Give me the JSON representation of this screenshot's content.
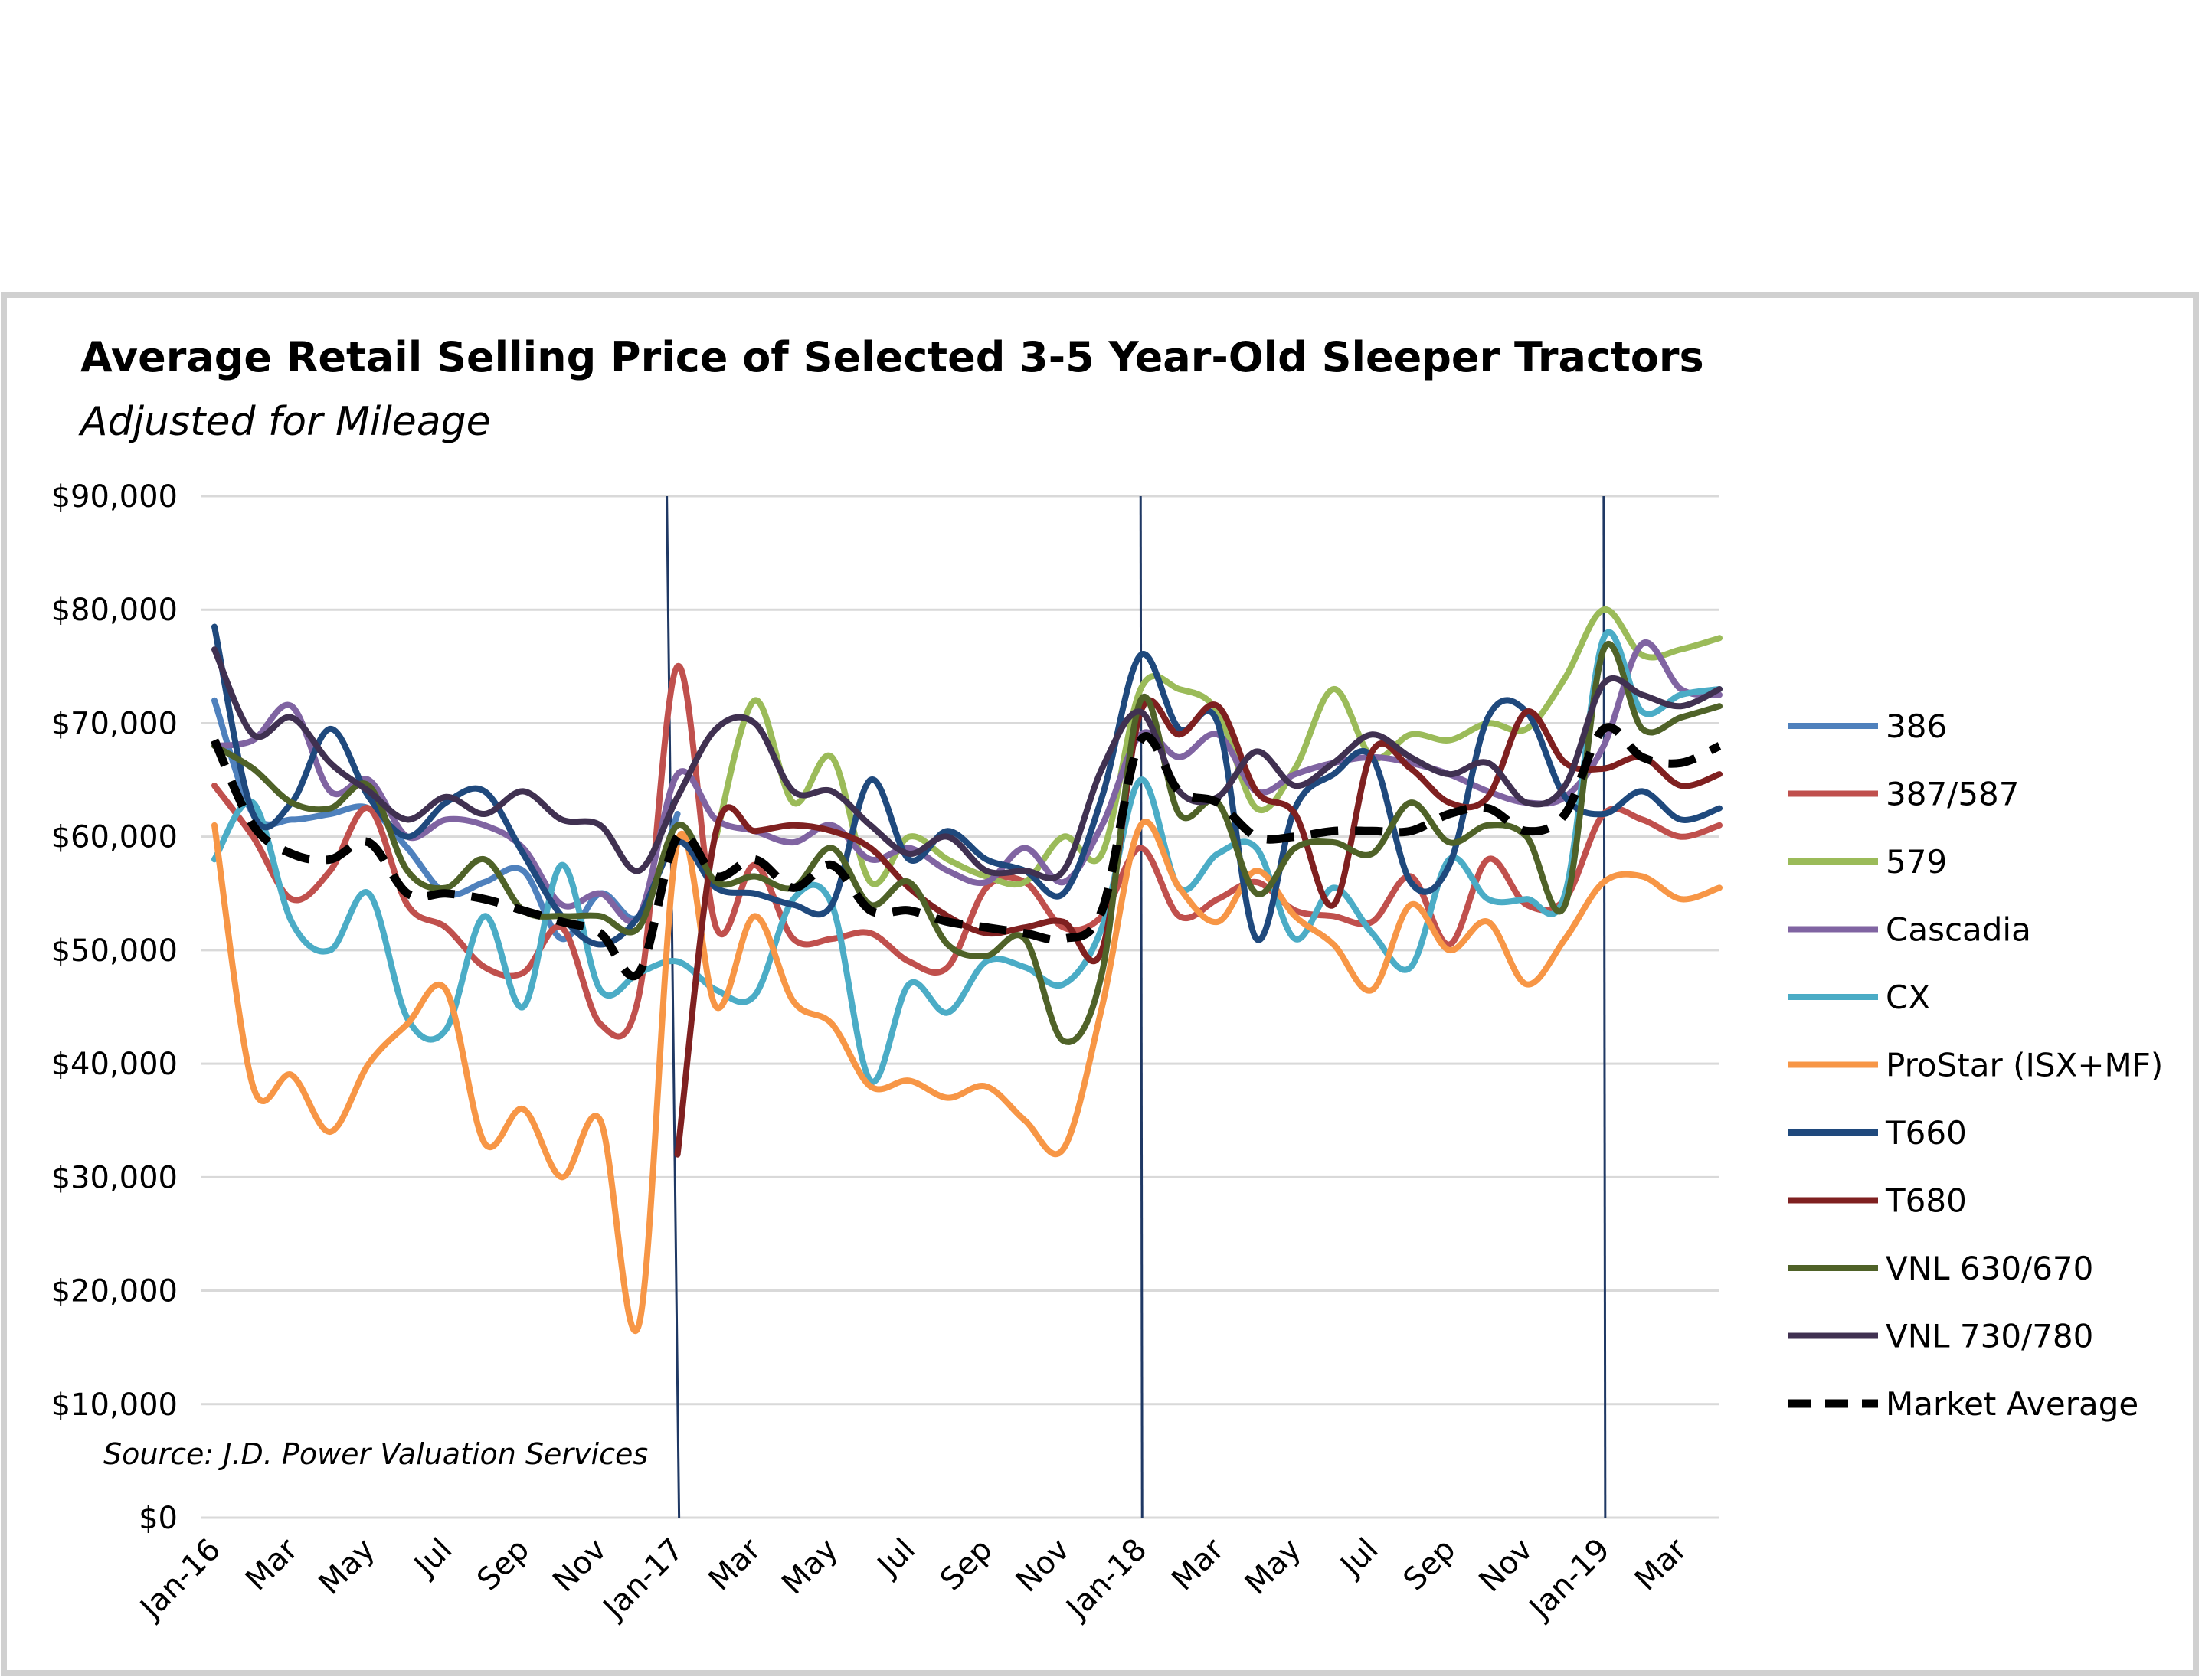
{
  "chart_data": {
    "type": "line",
    "title": "Average Retail Selling Price of Selected 3-5 Year-Old Sleeper Tractors",
    "subtitle": "Adjusted for Mileage",
    "source": "Source: J.D. Power Valuation Services",
    "xlabel": "",
    "ylabel": "",
    "ylim": [
      0,
      90000
    ],
    "y_ticks": [
      "$0",
      "$10,000",
      "$20,000",
      "$30,000",
      "$40,000",
      "$50,000",
      "$60,000",
      "$70,000",
      "$80,000",
      "$90,000"
    ],
    "x_tick_labels": [
      "Jan-16",
      "Mar",
      "May",
      "Jul",
      "Sep",
      "Nov",
      "Jan-17",
      "Mar",
      "May",
      "Jul",
      "Sep",
      "Nov",
      "Jan-18",
      "Mar",
      "May",
      "Jul",
      "Sep",
      "Nov",
      "Jan-19",
      "Mar"
    ],
    "categories": [
      "Jan-16",
      "Feb-16",
      "Mar-16",
      "Apr-16",
      "May-16",
      "Jun-16",
      "Jul-16",
      "Aug-16",
      "Sep-16",
      "Oct-16",
      "Nov-16",
      "Dec-16",
      "Jan-17",
      "Feb-17",
      "Mar-17",
      "Apr-17",
      "May-17",
      "Jun-17",
      "Jul-17",
      "Aug-17",
      "Sep-17",
      "Oct-17",
      "Nov-17",
      "Dec-17",
      "Jan-18",
      "Feb-18",
      "Mar-18",
      "Apr-18",
      "May-18",
      "Jun-18",
      "Jul-18",
      "Aug-18",
      "Sep-18",
      "Oct-18",
      "Nov-18",
      "Dec-18",
      "Jan-19",
      "Feb-19",
      "Mar-19",
      "Apr-19"
    ],
    "year_markers": [
      "Jan-17",
      "Jan-18",
      "Jan-19"
    ],
    "grid": "horizontal",
    "legend_position": "right",
    "series": [
      {
        "name": "386",
        "color": "#4F81BD",
        "dashed": false,
        "values": [
          72000,
          62000,
          61500,
          62000,
          62500,
          59000,
          55000,
          56000,
          57000,
          51000,
          55000,
          53000,
          62000,
          null,
          null,
          null,
          null,
          null,
          null,
          null,
          null,
          null,
          null,
          null,
          null,
          null,
          null,
          null,
          null,
          null,
          null,
          null,
          null,
          null,
          null,
          null,
          null,
          null,
          null,
          null
        ]
      },
      {
        "name": "387/587",
        "color": "#C0504D",
        "dashed": false,
        "values": [
          64500,
          60000,
          54500,
          57000,
          62500,
          54000,
          52000,
          48500,
          48000,
          52000,
          43500,
          46000,
          75000,
          52000,
          57500,
          51000,
          51000,
          51500,
          49000,
          48500,
          55500,
          56000,
          52000,
          53000,
          59000,
          53000,
          54500,
          56000,
          53500,
          53000,
          52500,
          56500,
          50500,
          58000,
          54000,
          54500,
          62000,
          61500,
          60000,
          61000
        ]
      },
      {
        "name": "579",
        "color": "#9BBB59",
        "dashed": false,
        "values": [
          null,
          null,
          null,
          null,
          null,
          null,
          null,
          null,
          null,
          null,
          null,
          null,
          null,
          60000,
          72000,
          63000,
          67000,
          56000,
          60000,
          58000,
          56500,
          56000,
          60000,
          58500,
          73000,
          73000,
          71000,
          62500,
          66000,
          73000,
          67000,
          69000,
          68500,
          70000,
          69500,
          74000,
          80000,
          76000,
          76500,
          77500
        ]
      },
      {
        "name": "Cascadia",
        "color": "#8064A2",
        "dashed": false,
        "values": [
          68000,
          68500,
          71500,
          64000,
          65000,
          60000,
          61500,
          61000,
          59000,
          54000,
          55000,
          53000,
          65500,
          61500,
          60500,
          59500,
          61000,
          58000,
          59000,
          57000,
          56000,
          59000,
          56000,
          61000,
          69000,
          67000,
          69000,
          64000,
          65500,
          66500,
          67000,
          66500,
          65500,
          64000,
          63000,
          63500,
          68000,
          77000,
          73000,
          72500
        ]
      },
      {
        "name": "CX",
        "color": "#4BACC6",
        "dashed": false,
        "values": [
          58000,
          63000,
          52500,
          50000,
          55000,
          44000,
          43000,
          53000,
          45000,
          57500,
          46500,
          48000,
          49000,
          46500,
          46000,
          54500,
          54000,
          38500,
          47000,
          44500,
          49000,
          48500,
          47000,
          52000,
          65000,
          55500,
          58500,
          59000,
          51000,
          55500,
          51500,
          48500,
          58000,
          54500,
          54500,
          55000,
          77500,
          71000,
          72500,
          73000
        ]
      },
      {
        "name": "ProStar (ISX+MF)",
        "color": "#F79646",
        "dashed": false,
        "values": [
          61000,
          38000,
          39000,
          34000,
          40000,
          43500,
          46500,
          33000,
          36000,
          30000,
          35000,
          17000,
          59500,
          45000,
          53000,
          45500,
          43500,
          38000,
          38500,
          37000,
          38000,
          35000,
          32500,
          45000,
          61000,
          55500,
          52500,
          57000,
          53000,
          50500,
          46500,
          54000,
          50000,
          52500,
          47000,
          51000,
          56000,
          56500,
          54500,
          55500
        ]
      },
      {
        "name": "T660",
        "color": "#1F497D",
        "dashed": false,
        "values": [
          78500,
          62000,
          63000,
          69500,
          63500,
          60000,
          63000,
          64000,
          58500,
          53000,
          50500,
          53000,
          59500,
          55500,
          55000,
          54000,
          54000,
          65000,
          58000,
          60500,
          58000,
          57000,
          55000,
          63500,
          76000,
          69500,
          70000,
          51000,
          62500,
          65500,
          67000,
          56000,
          57500,
          70500,
          71000,
          63500,
          62000,
          64000,
          61500,
          62500
        ]
      },
      {
        "name": "T680",
        "color": "#7F2020",
        "dashed": false,
        "values": [
          null,
          null,
          null,
          null,
          null,
          null,
          null,
          null,
          null,
          null,
          null,
          null,
          32000,
          60500,
          60500,
          61000,
          60500,
          59000,
          55500,
          53000,
          51500,
          52000,
          52500,
          50000,
          71000,
          69000,
          71500,
          64000,
          62000,
          54000,
          67500,
          66000,
          63000,
          63500,
          71000,
          66500,
          66000,
          67000,
          64500,
          65500
        ]
      },
      {
        "name": "VNL 630/670",
        "color": "#4F6228",
        "dashed": false,
        "values": [
          68000,
          66000,
          63000,
          62500,
          64500,
          57000,
          55500,
          58000,
          53500,
          53000,
          53000,
          52000,
          61000,
          56000,
          56500,
          55500,
          59000,
          54000,
          56000,
          50500,
          49500,
          51000,
          42000,
          48000,
          72000,
          62000,
          63000,
          55000,
          59000,
          59500,
          58500,
          63000,
          59500,
          61000,
          60000,
          54000,
          76500,
          69500,
          70500,
          71500
        ]
      },
      {
        "name": "VNL 730/780",
        "color": "#403151",
        "dashed": false,
        "values": [
          76500,
          69000,
          70500,
          66500,
          64000,
          61500,
          63500,
          62000,
          64000,
          61500,
          61000,
          57000,
          63500,
          69500,
          70000,
          64000,
          64000,
          61000,
          58500,
          60000,
          57000,
          57000,
          57000,
          66000,
          71000,
          64000,
          63500,
          67500,
          64500,
          66500,
          69000,
          67000,
          65500,
          66500,
          63000,
          64500,
          73500,
          72500,
          71500,
          73000
        ]
      },
      {
        "name": "Market Average",
        "color": "#000000",
        "dashed": true,
        "values": [
          68500,
          61000,
          58500,
          58000,
          59500,
          55000,
          55000,
          54500,
          53500,
          52500,
          51500,
          48000,
          60000,
          56500,
          58000,
          55500,
          57500,
          53500,
          53500,
          52500,
          52000,
          51500,
          51000,
          53500,
          68500,
          64000,
          63000,
          60000,
          60000,
          60500,
          60500,
          60500,
          62000,
          62500,
          60500,
          62000,
          69500,
          67000,
          66500,
          68000
        ]
      }
    ]
  }
}
